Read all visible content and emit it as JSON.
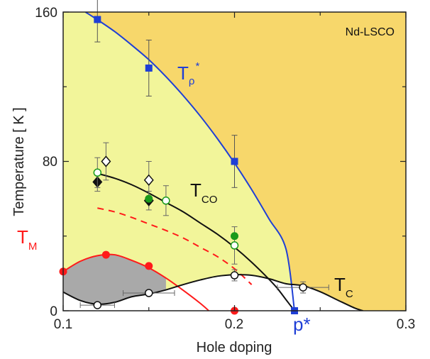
{
  "chart_data": {
    "type": "scatter",
    "title": "",
    "xlabel": "Hole doping",
    "ylabel": "Temperature [ K ]",
    "xlim": [
      0.1,
      0.3
    ],
    "ylim": [
      0,
      160
    ],
    "x_tick_labels": [
      "0.1",
      "0.2",
      "0.3"
    ],
    "y_tick_labels": [
      "0",
      "80",
      "160"
    ],
    "y_minor_ticks": [
      40,
      120
    ],
    "x_minor_ticks": [
      0.15,
      0.25
    ],
    "grid": false,
    "inset_label": "Nd-LSCO",
    "pstar_label": "p*",
    "pstar_value": 0.235,
    "colors": {
      "pseudogap_region": "#f7d76b",
      "co_region": "#f2f59a",
      "magnetic_region": "#a9a9a9",
      "superconducting_region": "#ffffff",
      "trho": "#1f3fd6",
      "tco": "#111111",
      "tm": "#ff1a1a",
      "green": "#1a9a1a"
    },
    "curve_labels": {
      "trho": {
        "main": "T",
        "sub": "ρ",
        "sup": "*"
      },
      "tco": {
        "main": "T",
        "sub": "CO"
      },
      "tm": {
        "main": "T",
        "sub": "M"
      },
      "tc": {
        "main": "T",
        "sub": "C"
      }
    },
    "curves": {
      "trho": {
        "x": [
          0.113,
          0.12,
          0.13,
          0.14,
          0.15,
          0.16,
          0.17,
          0.18,
          0.19,
          0.2,
          0.21,
          0.22,
          0.23,
          0.235
        ],
        "y": [
          160,
          155.9,
          149.6,
          142.3,
          134.5,
          125.4,
          115.3,
          104.3,
          92.2,
          79.1,
          64.9,
          49.4,
          33.2,
          0
        ]
      },
      "tco": {
        "x": [
          0.118,
          0.13,
          0.14,
          0.15,
          0.16,
          0.17,
          0.18,
          0.19,
          0.2,
          0.21,
          0.22,
          0.225,
          0.23,
          0.235
        ],
        "y": [
          74,
          71,
          67.5,
          63,
          58,
          53,
          47,
          41,
          34,
          26,
          17,
          12,
          6,
          0
        ]
      },
      "tco_onset_dashed": {
        "x": [
          0.12,
          0.13,
          0.14,
          0.15,
          0.16,
          0.17,
          0.18,
          0.19,
          0.2,
          0.21
        ],
        "y": [
          55,
          53,
          50,
          46.5,
          43,
          39,
          34,
          29,
          22.5,
          14
        ]
      },
      "tm": {
        "x": [
          0.1,
          0.11,
          0.12,
          0.13,
          0.14,
          0.15,
          0.16,
          0.17,
          0.18,
          0.185
        ],
        "y": [
          21,
          26.5,
          29.5,
          30,
          27,
          23,
          17.5,
          11,
          4,
          0
        ]
      },
      "tm_lower": {
        "x": [
          0.1,
          0.11,
          0.12,
          0.13,
          0.14,
          0.15,
          0.16
        ],
        "y": [
          10,
          5.5,
          3.5,
          4.5,
          7.5,
          9,
          9.8
        ]
      },
      "tc": {
        "x": [
          0.1,
          0.11,
          0.12,
          0.13,
          0.14,
          0.15,
          0.16,
          0.17,
          0.18,
          0.19,
          0.2,
          0.21,
          0.22,
          0.23,
          0.24,
          0.25,
          0.26,
          0.27,
          0.275
        ],
        "y": [
          10,
          5.5,
          3.5,
          4.5,
          7.5,
          9,
          11.2,
          14,
          16.5,
          18.5,
          19.3,
          19,
          17.2,
          14.5,
          13.4,
          10.2,
          5.8,
          1.5,
          0
        ]
      }
    },
    "series": [
      {
        "name": "T_rho*",
        "marker": "square",
        "color": "#1f3fd6",
        "points": [
          {
            "x": 0.12,
            "y": 156,
            "err": 12
          },
          {
            "x": 0.15,
            "y": 130,
            "err": 15
          },
          {
            "x": 0.2,
            "y": 80,
            "err": 14
          },
          {
            "x": 0.235,
            "y": 0,
            "err": 0
          }
        ]
      },
      {
        "name": "T_CO open diamond",
        "marker": "diamond-open",
        "color": "#111111",
        "points": [
          {
            "x": 0.125,
            "y": 80,
            "err": 10
          },
          {
            "x": 0.15,
            "y": 70,
            "err": 10
          }
        ]
      },
      {
        "name": "T_CO filled diamond",
        "marker": "diamond-filled",
        "color": "#111111",
        "points": [
          {
            "x": 0.12,
            "y": 69,
            "err": 5
          },
          {
            "x": 0.15,
            "y": 59,
            "err": 5
          }
        ]
      },
      {
        "name": "T_CO open circle green",
        "marker": "circle-open",
        "color": "#1a9a1a",
        "points": [
          {
            "x": 0.12,
            "y": 74,
            "err": 8
          },
          {
            "x": 0.16,
            "y": 59,
            "err": 8
          },
          {
            "x": 0.2,
            "y": 35,
            "err": 10
          }
        ]
      },
      {
        "name": "T_CO filled circle green",
        "marker": "circle-filled",
        "color": "#1a9a1a",
        "points": [
          {
            "x": 0.15,
            "y": 60,
            "err": 0
          },
          {
            "x": 0.2,
            "y": 40,
            "err": 0
          }
        ]
      },
      {
        "name": "T_M",
        "marker": "circle-filled",
        "color": "#ff1a1a",
        "points": [
          {
            "x": 0.1,
            "y": 21,
            "err": 0
          },
          {
            "x": 0.125,
            "y": 30,
            "err": 0
          },
          {
            "x": 0.15,
            "y": 24,
            "err": 0
          },
          {
            "x": 0.2,
            "y": 0,
            "err": 0
          }
        ]
      },
      {
        "name": "T_c",
        "marker": "circle-open",
        "color": "#111111",
        "points": [
          {
            "x": 0.12,
            "y": 3,
            "xerr": 0.01,
            "err": 0
          },
          {
            "x": 0.15,
            "y": 9.5,
            "xerr": 0.015,
            "err": 0
          },
          {
            "x": 0.2,
            "y": 19,
            "xerr": 0,
            "err": 3
          },
          {
            "x": 0.24,
            "y": 12.5,
            "xerr": 0.015,
            "err": 3
          }
        ]
      }
    ]
  }
}
